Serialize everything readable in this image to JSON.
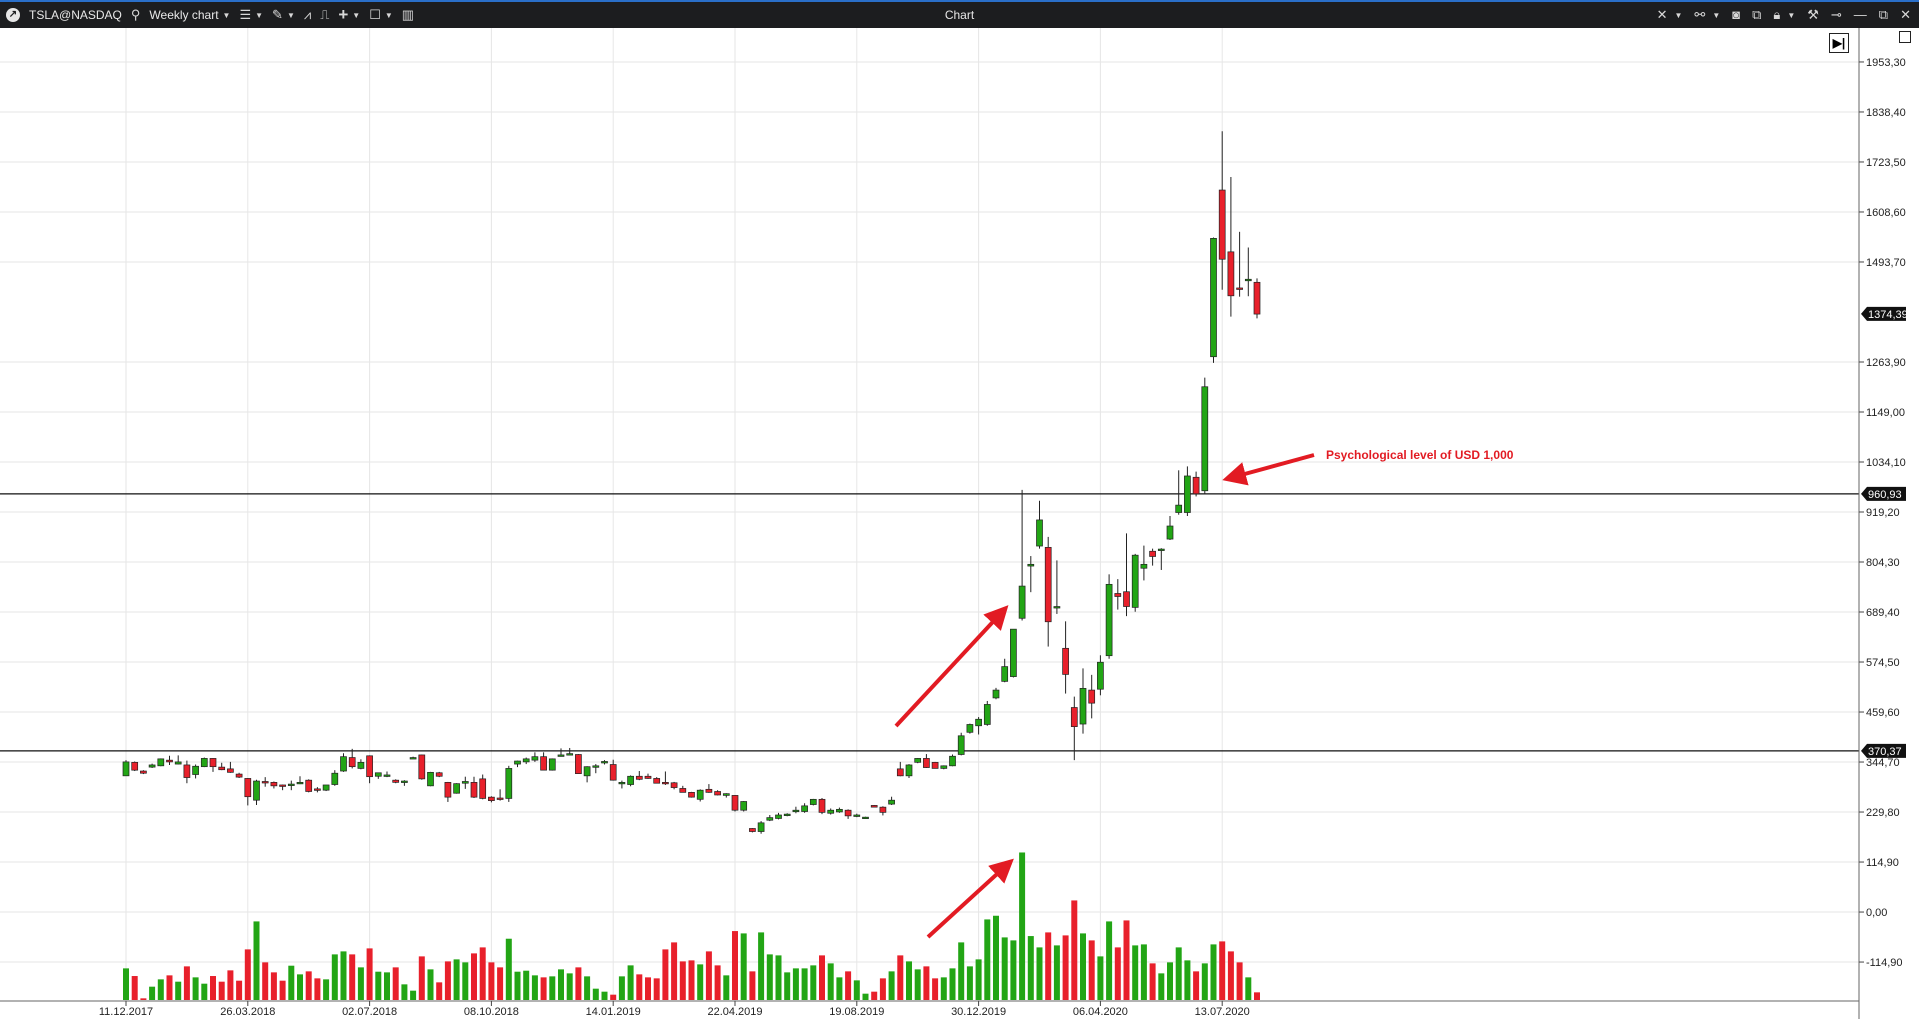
{
  "window": {
    "symbol": "TSLA@NASDAQ",
    "timeframe": "Weekly chart",
    "title": "Chart",
    "toolbar_left_icons": [
      "app-logo-icon",
      "search-icon",
      "timeframe-dropdown",
      "chart-type-icon",
      "draw-pencil-icon",
      "indicators-icon",
      "templates-icon",
      "crosshair-plus-icon",
      "layout-icon",
      "panels-icon"
    ],
    "toolbar_right_icons": [
      "cursor-icon",
      "link-icon",
      "screenshot-icon",
      "clone-window-icon",
      "lock-icon",
      "settings-tools-icon",
      "pin-icon",
      "minimize-icon",
      "restore-icon",
      "close-icon"
    ]
  },
  "chart_data": {
    "type": "candlestick",
    "title": "",
    "colors": {
      "up": "#22a515",
      "down": "#e8202b",
      "annotation": "#e21b23"
    },
    "price_axis": {
      "ticks": [
        "1953,30",
        "1838,40",
        "1723,50",
        "1608,60",
        "1493,70",
        "1263,90",
        "1149,00",
        "1034,10",
        "919,20",
        "804,30",
        "689,40",
        "574,50",
        "459,60",
        "344,70",
        "229,80",
        "114,90",
        "0,00",
        "-114,90"
      ],
      "last_price_tag": "1374,39",
      "horizontal_levels": [
        "960,93",
        "370,37"
      ]
    },
    "date_axis": {
      "ticks": [
        "11.12.2017",
        "26.03.2018",
        "02.07.2018",
        "08.10.2018",
        "14.01.2019",
        "22.04.2019",
        "19.08.2019",
        "30.12.2019",
        "06.04.2020",
        "13.07.2020"
      ],
      "tick_candle_index": [
        0,
        14,
        28,
        42,
        56,
        70,
        84,
        98,
        112,
        126
      ]
    },
    "ohlc": [
      [
        313,
        349,
        313,
        345
      ],
      [
        344,
        346,
        324,
        326
      ],
      [
        324,
        326,
        317,
        319
      ],
      [
        333,
        341,
        331,
        338
      ],
      [
        336,
        353,
        335,
        352
      ],
      [
        349,
        359,
        338,
        345
      ],
      [
        340,
        360,
        339,
        345
      ],
      [
        338,
        348,
        296,
        309
      ],
      [
        316,
        339,
        307,
        335
      ],
      [
        334,
        355,
        333,
        353
      ],
      [
        353,
        354,
        322,
        334
      ],
      [
        333,
        343,
        326,
        327
      ],
      [
        329,
        345,
        320,
        321
      ],
      [
        317,
        320,
        308,
        310
      ],
      [
        307,
        308,
        245,
        265
      ],
      [
        257,
        304,
        246,
        301
      ],
      [
        300,
        310,
        288,
        299
      ],
      [
        298,
        300,
        284,
        290
      ],
      [
        292,
        293,
        280,
        291
      ],
      [
        293,
        302,
        280,
        294
      ],
      [
        296,
        312,
        294,
        298
      ],
      [
        303,
        305,
        275,
        277
      ],
      [
        283,
        287,
        275,
        281
      ],
      [
        280,
        292,
        278,
        292
      ],
      [
        293,
        326,
        290,
        319
      ],
      [
        324,
        365,
        322,
        357
      ],
      [
        355,
        375,
        330,
        334
      ],
      [
        330,
        351,
        328,
        344
      ],
      [
        359,
        360,
        296,
        311
      ],
      [
        312,
        320,
        306,
        320
      ],
      [
        315,
        323,
        310,
        315
      ],
      [
        303,
        305,
        296,
        298
      ],
      [
        298,
        303,
        290,
        301
      ],
      [
        354,
        357,
        352,
        355
      ],
      [
        361,
        362,
        304,
        306
      ],
      [
        290,
        322,
        289,
        321
      ],
      [
        320,
        322,
        310,
        312
      ],
      [
        298,
        299,
        253,
        264
      ],
      [
        273,
        296,
        272,
        295
      ],
      [
        296,
        311,
        283,
        300
      ],
      [
        298,
        311,
        262,
        264
      ],
      [
        306,
        316,
        259,
        261
      ],
      [
        264,
        266,
        252,
        256
      ],
      [
        262,
        282,
        256,
        261
      ],
      [
        261,
        336,
        253,
        330
      ],
      [
        340,
        348,
        333,
        347
      ],
      [
        345,
        355,
        340,
        352
      ],
      [
        349,
        367,
        345,
        357
      ],
      [
        357,
        367,
        326,
        326
      ],
      [
        326,
        353,
        325,
        352
      ],
      [
        361,
        376,
        358,
        361
      ],
      [
        364,
        377,
        360,
        364
      ],
      [
        362,
        363,
        318,
        318
      ],
      [
        313,
        335,
        298,
        334
      ],
      [
        335,
        340,
        319,
        336
      ],
      [
        343,
        349,
        339,
        346
      ],
      [
        339,
        350,
        302,
        303
      ],
      [
        298,
        302,
        284,
        298
      ],
      [
        293,
        314,
        289,
        312
      ],
      [
        312,
        324,
        303,
        305
      ],
      [
        312,
        318,
        306,
        307
      ],
      [
        307,
        310,
        296,
        296
      ],
      [
        298,
        323,
        292,
        297
      ],
      [
        297,
        299,
        282,
        286
      ],
      [
        284,
        290,
        275,
        275
      ],
      [
        275,
        276,
        263,
        264
      ],
      [
        259,
        282,
        254,
        280
      ],
      [
        282,
        294,
        274,
        275
      ],
      [
        277,
        280,
        268,
        269
      ],
      [
        268,
        273,
        263,
        272
      ],
      [
        268,
        269,
        231,
        234
      ],
      [
        234,
        255,
        231,
        254
      ],
      [
        192,
        193,
        183,
        185
      ],
      [
        185,
        209,
        180,
        205
      ],
      [
        211,
        223,
        209,
        217
      ],
      [
        215,
        228,
        213,
        223
      ],
      [
        224,
        227,
        220,
        225
      ],
      [
        233,
        242,
        227,
        234
      ],
      [
        231,
        250,
        228,
        244
      ],
      [
        247,
        260,
        245,
        259
      ],
      [
        259,
        262,
        225,
        229
      ],
      [
        227,
        238,
        224,
        234
      ],
      [
        230,
        240,
        228,
        236
      ],
      [
        234,
        236,
        214,
        221
      ],
      [
        222,
        226,
        218,
        223
      ],
      [
        217,
        219,
        215,
        218
      ],
      [
        245,
        246,
        241,
        241
      ],
      [
        241,
        243,
        222,
        229
      ],
      [
        248,
        265,
        246,
        257
      ],
      [
        329,
        345,
        312,
        313
      ],
      [
        313,
        340,
        308,
        338
      ],
      [
        344,
        354,
        342,
        353
      ],
      [
        353,
        363,
        331,
        332
      ],
      [
        344,
        345,
        330,
        330
      ],
      [
        330,
        337,
        328,
        336
      ],
      [
        336,
        362,
        335,
        358
      ],
      [
        362,
        412,
        360,
        405
      ],
      [
        413,
        433,
        410,
        431
      ],
      [
        428,
        448,
        408,
        443
      ],
      [
        431,
        485,
        428,
        477
      ],
      [
        492,
        515,
        489,
        510
      ],
      [
        530,
        582,
        528,
        564
      ],
      [
        541,
        650,
        539,
        650
      ],
      [
        675,
        970,
        670,
        749
      ],
      [
        795,
        818,
        735,
        799
      ],
      [
        841,
        945,
        835,
        901
      ],
      [
        838,
        862,
        610,
        667
      ],
      [
        700,
        808,
        685,
        702
      ],
      [
        606,
        668,
        502,
        546
      ],
      [
        470,
        495,
        349,
        426
      ],
      [
        432,
        560,
        410,
        514
      ],
      [
        510,
        545,
        445,
        480
      ],
      [
        512,
        590,
        498,
        574
      ],
      [
        589,
        776,
        582,
        753
      ],
      [
        732,
        765,
        695,
        725
      ],
      [
        736,
        870,
        680,
        702
      ],
      [
        700,
        823,
        690,
        820
      ],
      [
        790,
        842,
        762,
        799
      ],
      [
        829,
        835,
        796,
        817
      ],
      [
        833,
        836,
        786,
        834
      ],
      [
        857,
        910,
        855,
        887
      ],
      [
        918,
        1015,
        913,
        935
      ],
      [
        918,
        1024,
        910,
        1002
      ],
      [
        999,
        1012,
        955,
        961
      ],
      [
        968,
        1228,
        960,
        1207
      ],
      [
        1276,
        1550,
        1262,
        1548
      ],
      [
        1659,
        1794,
        1430,
        1500
      ],
      [
        1517,
        1689,
        1368,
        1416
      ],
      [
        1434,
        1563,
        1414,
        1433
      ],
      [
        1451,
        1527,
        1415,
        1454
      ],
      [
        1447,
        1456,
        1364,
        1374
      ]
    ],
    "volume_relative": [
      95,
      72,
      5,
      40,
      62,
      74,
      55,
      101,
      68,
      49,
      72,
      55,
      89,
      58,
      152,
      236,
      113,
      83,
      58,
      103,
      77,
      86,
      65,
      62,
      137,
      146,
      137,
      98,
      155,
      85,
      83,
      98,
      47,
      28,
      131,
      92,
      53,
      116,
      122,
      113,
      140,
      158,
      113,
      98,
      184,
      85,
      88,
      74,
      68,
      71,
      92,
      80,
      98,
      71,
      34,
      25,
      16,
      71,
      104,
      77,
      68,
      65,
      152,
      173,
      116,
      119,
      107,
      146,
      104,
      74,
      207,
      200,
      86,
      203,
      137,
      134,
      83,
      95,
      95,
      104,
      134,
      110,
      68,
      86,
      59,
      19,
      25,
      65,
      86,
      134,
      116,
      92,
      101,
      65,
      68,
      95,
      173,
      101,
      122,
      242,
      253,
      188,
      179,
      443,
      192,
      158,
      203,
      164,
      194,
      299,
      200,
      179,
      131,
      236,
      158,
      239,
      164,
      167,
      110,
      80,
      113,
      158,
      119,
      86,
      110,
      167,
      176,
      146,
      113,
      68,
      23
    ],
    "annotations": [
      {
        "text": "Psychological level of USD 1,000"
      }
    ]
  }
}
